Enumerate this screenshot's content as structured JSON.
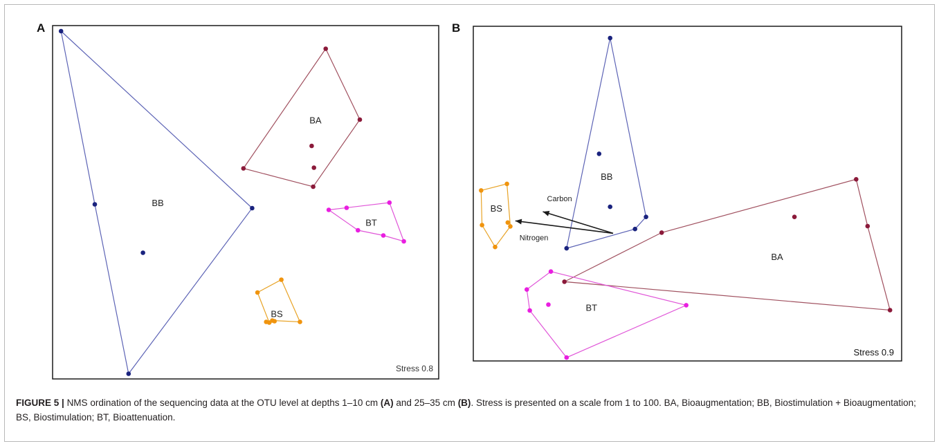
{
  "caption": {
    "label": "FIGURE 5 |",
    "part1": "NMS ordination of the sequencing data at the OTU level at depths 1–10 cm",
    "ref_a": "(A)",
    "part2": "and 25–35 cm",
    "ref_b": "(B)",
    "part3": ". Stress is presented on a scale from 1 to 100. BA, Bioaugmentation; BB, Biostimulation + Bioaugmentation; BS, Biostimulation; BT, Bioattenuation."
  },
  "colors": {
    "BB": "#1a237e",
    "BB_line": "#5c63b5",
    "BA": "#8b1a3a",
    "BA_line": "#a0505f",
    "BT": "#e91ee0",
    "BT_line": "#e055d8",
    "BS": "#f0940e",
    "BS_line": "#e8a326",
    "axis": "#1a1a1a"
  },
  "chart_data": [
    {
      "type": "scatter",
      "panel": "A",
      "stress": "Stress 0.8",
      "xlim": [
        0,
        100
      ],
      "ylim": [
        0,
        100
      ],
      "groups": [
        {
          "name": "BB",
          "label_at": [
            27,
            49.5
          ],
          "points": [
            [
              1.5,
              99.4
            ],
            [
              10.4,
              49.3
            ],
            [
              23.1,
              35.3
            ],
            [
              19.3,
              0.3
            ],
            [
              51.9,
              48.2
            ]
          ],
          "hull": [
            0,
            4,
            3,
            1
          ]
        },
        {
          "name": "BA",
          "label_at": [
            68.6,
            73.4
          ],
          "points": [
            [
              71.3,
              94.3
            ],
            [
              80.3,
              73.8
            ],
            [
              49.6,
              59.7
            ],
            [
              68,
              54.4
            ],
            [
              67.6,
              66.2
            ],
            [
              68.2,
              59.9
            ]
          ],
          "hull": [
            0,
            1,
            3,
            2
          ]
        },
        {
          "name": "BT",
          "label_at": [
            83.3,
            43.8
          ],
          "points": [
            [
              72.1,
              47.7
            ],
            [
              76.8,
              48.3
            ],
            [
              88.1,
              49.8
            ],
            [
              91.9,
              38.6
            ],
            [
              86.5,
              40.3
            ],
            [
              79.8,
              41.8
            ]
          ],
          "hull": [
            0,
            2,
            3,
            4,
            5
          ]
        },
        {
          "name": "BS",
          "label_at": [
            58.4,
            17.4
          ],
          "points": [
            [
              53.3,
              23.8
            ],
            [
              59.6,
              27.5
            ],
            [
              64.5,
              15.3
            ],
            [
              57.2,
              15.7
            ],
            [
              56.4,
              15.1
            ],
            [
              57.8,
              15.5
            ],
            [
              55.6,
              15.3
            ]
          ],
          "hull": [
            0,
            1,
            2,
            3,
            4
          ]
        }
      ]
    },
    {
      "type": "scatter",
      "panel": "B",
      "stress": "Stress 0.9",
      "xlim": [
        0,
        100
      ],
      "ylim": [
        0,
        100
      ],
      "vectors": [
        {
          "label": "Carbon",
          "from": [
            32.4,
            38.4
          ],
          "to": [
            15.8,
            45
          ]
        },
        {
          "label": "Nitrogen",
          "from": [
            32.4,
            38.4
          ],
          "to": [
            9.3,
            42.2
          ]
        }
      ],
      "groups": [
        {
          "name": "BB",
          "label_at": [
            30.9,
            55.5
          ],
          "points": [
            [
              31.7,
              98.1
            ],
            [
              29.1,
              62.7
            ],
            [
              31.7,
              46.5
            ],
            [
              40.2,
              43.4
            ],
            [
              37.6,
              39.7
            ],
            [
              21.4,
              33.8
            ]
          ],
          "hull": [
            0,
            3,
            4,
            5
          ]
        },
        {
          "name": "BA",
          "label_at": [
            71.2,
            30.9
          ],
          "points": [
            [
              89.9,
              54.9
            ],
            [
              92.6,
              40.6
            ],
            [
              97.9,
              14.9
            ],
            [
              43.9,
              38.6
            ],
            [
              75.3,
              43.4
            ],
            [
              20.9,
              23.6
            ]
          ],
          "hull": [
            0,
            1,
            2,
            5,
            3
          ]
        },
        {
          "name": "BT",
          "label_at": [
            27.3,
            15.4
          ],
          "points": [
            [
              17.7,
              26.7
            ],
            [
              12,
              21.2
            ],
            [
              12.7,
              14.8
            ],
            [
              21.4,
              0.4
            ],
            [
              49.7,
              16.4
            ],
            [
              17.1,
              16.6
            ]
          ],
          "hull": [
            0,
            4,
            3,
            2,
            1
          ]
        },
        {
          "name": "BS",
          "label_at": [
            4.8,
            45.8
          ],
          "points": [
            [
              1.2,
              51.5
            ],
            [
              7.3,
              53.5
            ],
            [
              8.1,
              40.5
            ],
            [
              7.5,
              41.7
            ],
            [
              4.5,
              34.2
            ],
            [
              1.4,
              40.9
            ]
          ],
          "hull": [
            0,
            1,
            2,
            4,
            5
          ]
        }
      ]
    }
  ]
}
